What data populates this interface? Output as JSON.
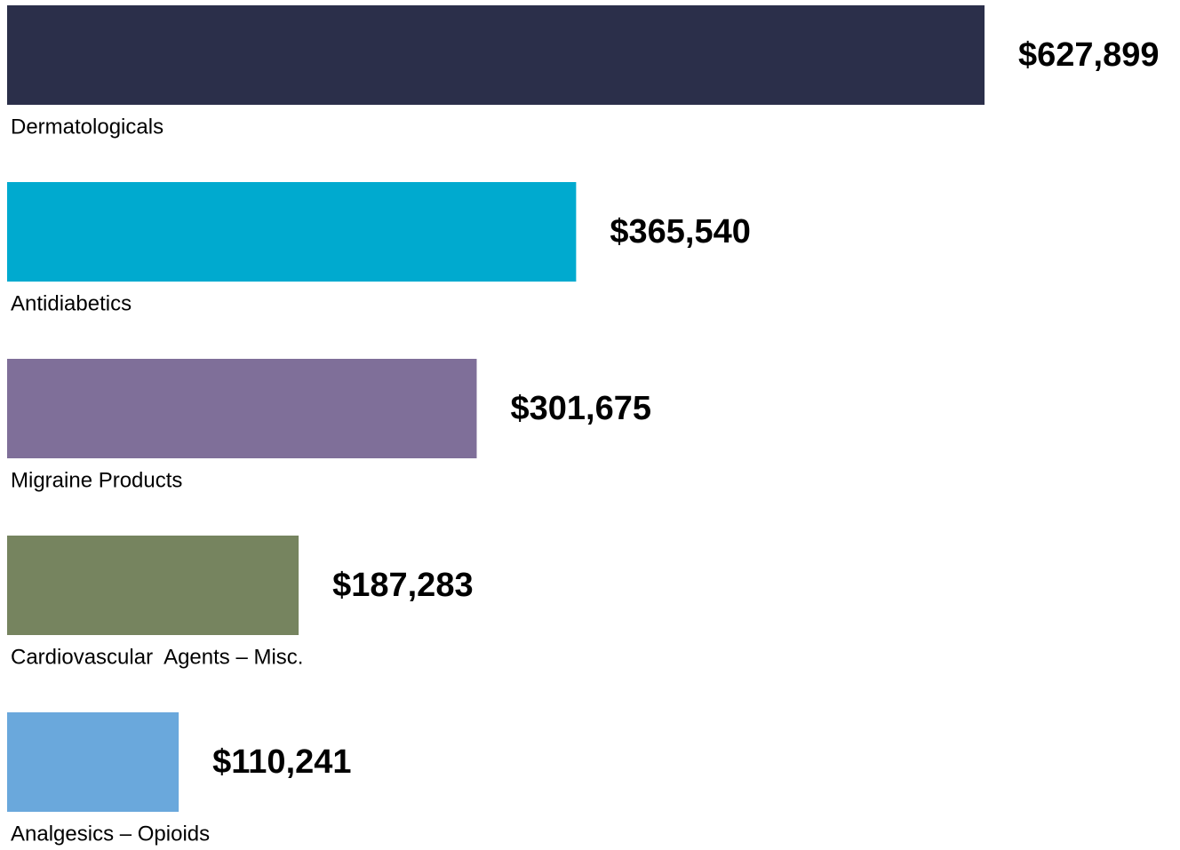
{
  "chart_data": {
    "type": "bar",
    "orientation": "horizontal",
    "categories": [
      "Dermatologicals",
      "Antidiabetics",
      "Migraine Products",
      "Cardiovascular  Agents – Misc.",
      "Analgesics – Opioids"
    ],
    "values": [
      627899,
      365540,
      301675,
      187283,
      110241
    ],
    "value_labels": [
      "$627,899",
      "$365,540",
      "$301,675",
      "$187,283",
      "$110,241"
    ],
    "colors": [
      "#2b2f4a",
      "#00aacf",
      "#7f6f99",
      "#76845f",
      "#6aa8dc"
    ]
  }
}
